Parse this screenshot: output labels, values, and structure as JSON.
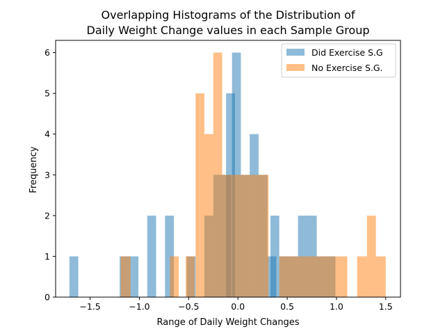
{
  "chart_data": {
    "type": "histogram",
    "title_lines": [
      "Overlapping Histograms of the Distribution of",
      "Daily Weight Change values in each Sample Group"
    ],
    "xlabel": "Range of Daily Weight Changes",
    "ylabel": "Frequency",
    "xlim": [
      -1.85,
      1.65
    ],
    "ylim": [
      0,
      6.3
    ],
    "xticks": [
      -1.5,
      -1.0,
      -0.5,
      0.0,
      0.5,
      1.0,
      1.5
    ],
    "xtick_labels": [
      "−1.5",
      "−1.0",
      "−0.5",
      "0.0",
      "0.5",
      "1.0",
      "1.5"
    ],
    "yticks": [
      0,
      1,
      2,
      3,
      4,
      5,
      6
    ],
    "ytick_labels": [
      "0",
      "1",
      "2",
      "3",
      "4",
      "5",
      "6"
    ],
    "legend_position": "top-right",
    "series": [
      {
        "name": "Did Exercise S.G",
        "color": "#1f77b4",
        "opacity": 0.5,
        "bins": [
          [
            -1.71,
            -1.62,
            1
          ],
          [
            -1.2,
            -1.1,
            1
          ],
          [
            -1.1,
            -1.01,
            1
          ],
          [
            -0.92,
            -0.83,
            2
          ],
          [
            -0.74,
            -0.65,
            2
          ],
          [
            -0.52,
            -0.43,
            1
          ],
          [
            -0.34,
            -0.25,
            2
          ],
          [
            -0.25,
            -0.16,
            3
          ],
          [
            -0.16,
            -0.07,
            3
          ],
          [
            -0.12,
            -0.03,
            5
          ],
          [
            -0.06,
            0.03,
            6
          ],
          [
            0.03,
            0.12,
            3
          ],
          [
            0.12,
            0.21,
            4
          ],
          [
            0.21,
            0.3,
            3
          ],
          [
            0.3,
            0.39,
            1
          ],
          [
            0.33,
            0.42,
            2
          ],
          [
            0.42,
            0.61,
            1
          ],
          [
            0.61,
            0.8,
            2
          ],
          [
            0.8,
            0.99,
            1
          ]
        ]
      },
      {
        "name": "No Exercise S.G.",
        "color": "#ff7f0e",
        "opacity": 0.5,
        "bins": [
          [
            -1.19,
            -1.09,
            1
          ],
          [
            -0.69,
            -0.6,
            1
          ],
          [
            -0.53,
            -0.44,
            1
          ],
          [
            -0.43,
            -0.34,
            5
          ],
          [
            -0.34,
            -0.25,
            4
          ],
          [
            -0.25,
            -0.16,
            6
          ],
          [
            -0.16,
            -0.07,
            3
          ],
          [
            -0.07,
            0.03,
            3
          ],
          [
            0.03,
            0.12,
            3
          ],
          [
            0.12,
            0.22,
            3
          ],
          [
            0.22,
            0.31,
            3
          ],
          [
            0.42,
            1.0,
            1
          ],
          [
            1.0,
            1.11,
            1
          ],
          [
            1.21,
            1.31,
            1
          ],
          [
            1.31,
            1.4,
            2
          ],
          [
            1.4,
            1.5,
            1
          ]
        ]
      }
    ]
  }
}
